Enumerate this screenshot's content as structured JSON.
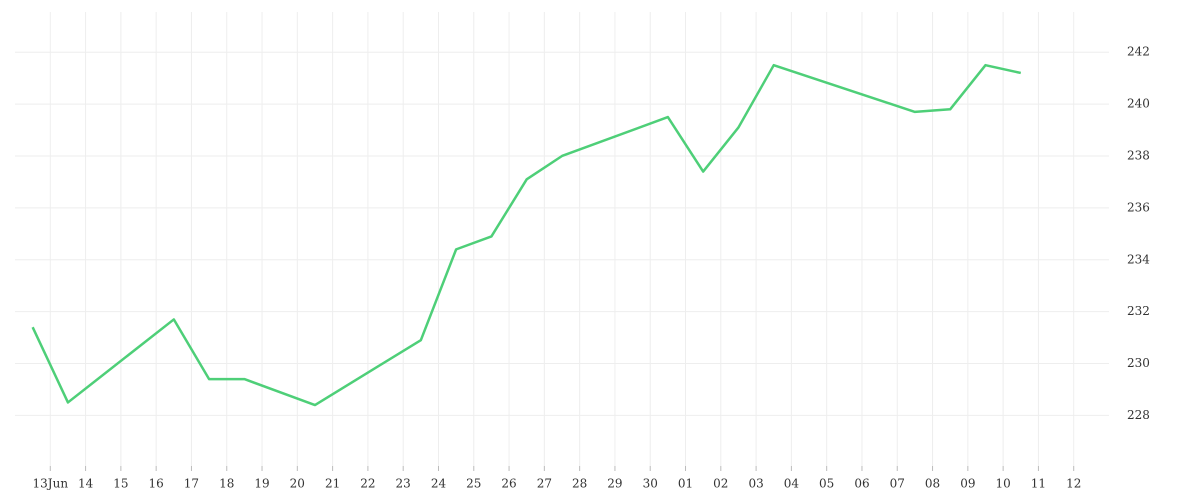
{
  "chart_data": {
    "type": "line",
    "x": [
      -0.5,
      0.5,
      3.5,
      4.5,
      5.5,
      7.5,
      10.5,
      11.5,
      12.5,
      13.5,
      14.5,
      17.5,
      18.5,
      19.5,
      20.5,
      24.5,
      25.5,
      26.5,
      27.5
    ],
    "series": [
      {
        "color": "#4ecf78",
        "values": [
          231.4,
          228.5,
          231.7,
          229.4,
          229.4,
          228.4,
          230.9,
          234.4,
          234.9,
          237.1,
          238.0,
          239.5,
          237.4,
          239.1,
          241.5,
          239.7,
          239.8,
          241.5,
          241.2
        ]
      }
    ],
    "xlim": [
      -1,
      30
    ],
    "xticks": [
      {
        "value": 0,
        "label": "13Jun"
      },
      {
        "value": 1,
        "label": "14"
      },
      {
        "value": 2,
        "label": "15"
      },
      {
        "value": 3,
        "label": "16"
      },
      {
        "value": 4,
        "label": "17"
      },
      {
        "value": 5,
        "label": "18"
      },
      {
        "value": 6,
        "label": "19"
      },
      {
        "value": 7,
        "label": "20"
      },
      {
        "value": 8,
        "label": "21"
      },
      {
        "value": 9,
        "label": "22"
      },
      {
        "value": 10,
        "label": "23"
      },
      {
        "value": 11,
        "label": "24"
      },
      {
        "value": 12,
        "label": "25"
      },
      {
        "value": 13,
        "label": "26"
      },
      {
        "value": 14,
        "label": "27"
      },
      {
        "value": 15,
        "label": "28"
      },
      {
        "value": 16,
        "label": "29"
      },
      {
        "value": 17,
        "label": "30"
      },
      {
        "value": 18,
        "label": "01"
      },
      {
        "value": 19,
        "label": "02"
      },
      {
        "value": 20,
        "label": "03"
      },
      {
        "value": 21,
        "label": "04"
      },
      {
        "value": 22,
        "label": "05"
      },
      {
        "value": 23,
        "label": "06"
      },
      {
        "value": 24,
        "label": "07"
      },
      {
        "value": 25,
        "label": "08"
      },
      {
        "value": 26,
        "label": "09"
      },
      {
        "value": 27,
        "label": "10"
      },
      {
        "value": 28,
        "label": "11"
      },
      {
        "value": 29,
        "label": "12"
      }
    ],
    "ylim": [
      226.05,
      243.55
    ],
    "yticks": [
      228,
      230,
      232,
      234,
      236,
      238,
      240,
      242
    ],
    "grid": true
  }
}
